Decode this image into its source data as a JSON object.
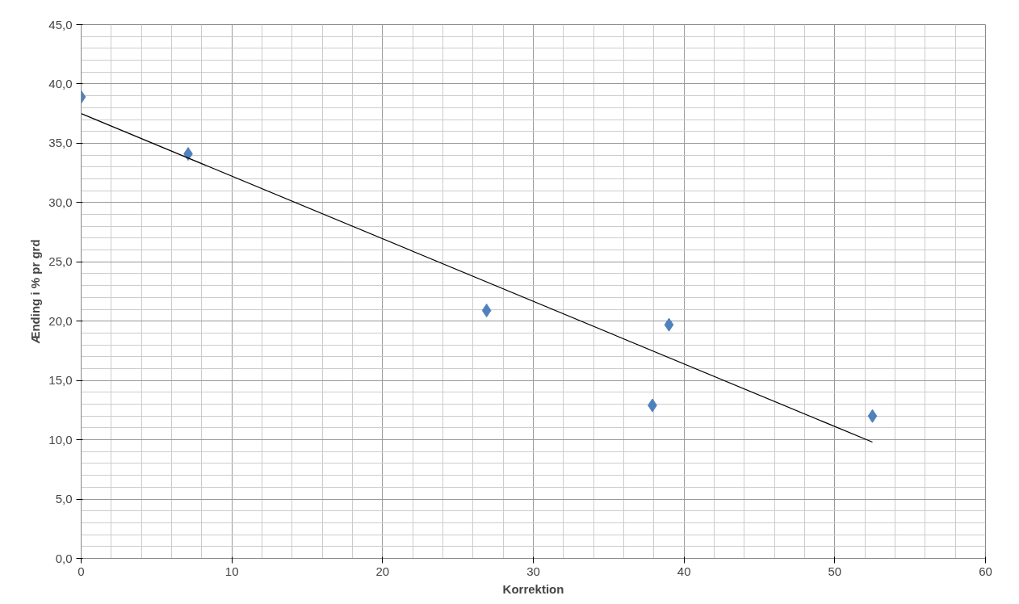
{
  "chart_data": {
    "type": "scatter",
    "xlabel": "Korrektion",
    "ylabel": "Ænding i % pr grd",
    "xlim": [
      0,
      60
    ],
    "xticks": [
      0,
      10,
      20,
      30,
      40,
      50,
      60
    ],
    "ylim": [
      0,
      45
    ],
    "yticks": [
      {
        "value": 0,
        "label": "0,0"
      },
      {
        "value": 5,
        "label": "5,0"
      },
      {
        "value": 10,
        "label": "10,0"
      },
      {
        "value": 15,
        "label": "15,0"
      },
      {
        "value": 20,
        "label": "20,0"
      },
      {
        "value": 25,
        "label": "25,0"
      },
      {
        "value": 30,
        "label": "30,0"
      },
      {
        "value": 35,
        "label": "35,0"
      },
      {
        "value": 40,
        "label": "40,0"
      },
      {
        "value": 45,
        "label": "45,0"
      }
    ],
    "grid": true,
    "marker": "diamond",
    "series": [
      {
        "color": "#4f81bd",
        "x": [
          0,
          7.1,
          26.9,
          37.9,
          39.0,
          52.5
        ],
        "values": [
          38.9,
          34.1,
          20.9,
          12.9,
          19.7,
          12.0
        ]
      },
      {
        "type": "line",
        "color": "#000000",
        "line_style": "solid",
        "marker": "none",
        "x": [
          0,
          52.5
        ],
        "values": [
          37.5,
          9.8
        ]
      }
    ]
  }
}
